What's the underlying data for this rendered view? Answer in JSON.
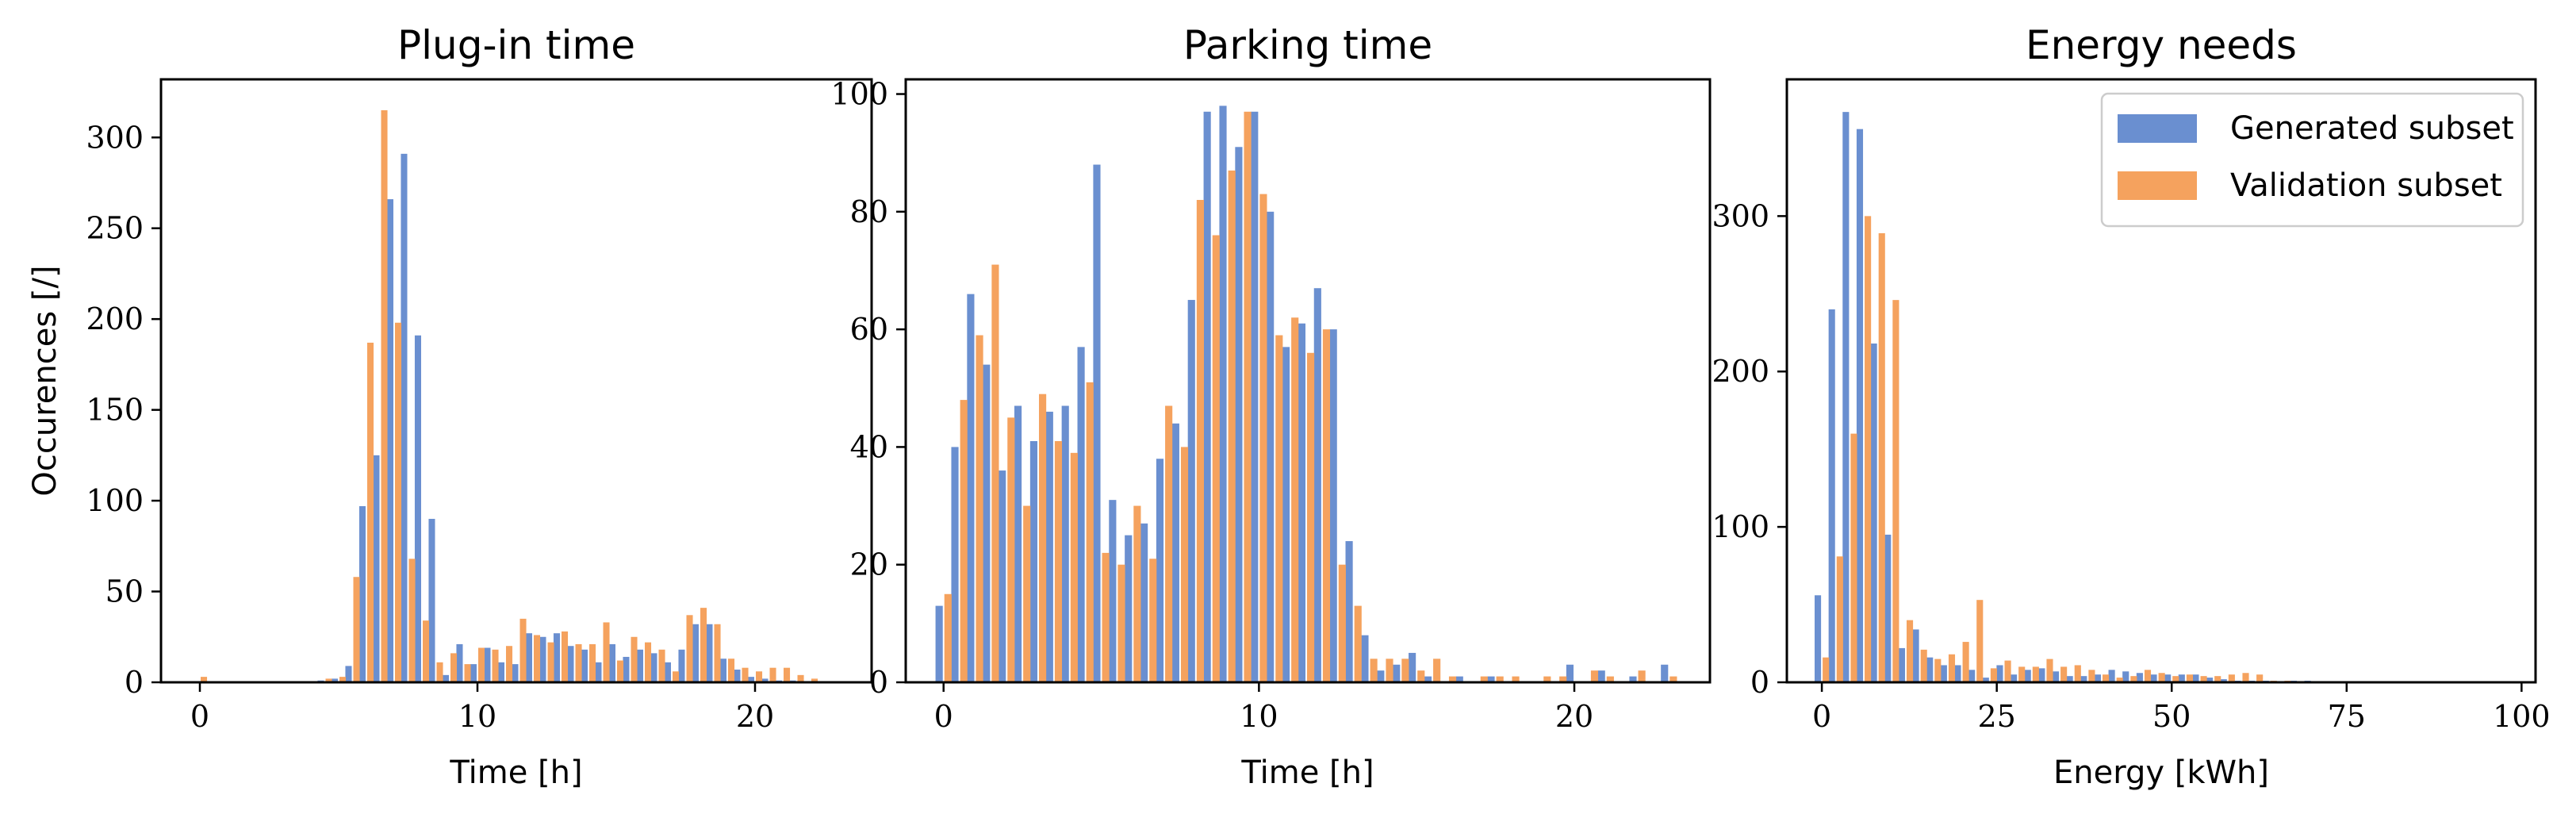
{
  "colors": {
    "generated": "#6a8fd0",
    "validation": "#f5a25e"
  },
  "chart_data": [
    {
      "type": "bar",
      "title": "Plug-in time",
      "xlabel": "Time [h]",
      "ylabel": "Occurences [/]",
      "xlim": [
        -1.4,
        24.2
      ],
      "ylim": [
        0,
        332
      ],
      "xticks": [
        0,
        10,
        20
      ],
      "xtick_labels": [
        "0",
        "10",
        "20"
      ],
      "yticks": [
        0,
        50,
        100,
        150,
        200,
        250,
        300
      ],
      "ytick_labels": [
        "0",
        "50",
        "100",
        "150",
        "200",
        "250",
        "300"
      ],
      "bin_width": 0.5,
      "x": [
        0,
        0.5,
        1,
        1.5,
        2,
        2.5,
        3,
        3.5,
        4,
        4.5,
        5,
        5.5,
        6,
        6.5,
        7,
        7.5,
        8,
        8.5,
        9,
        9.5,
        10,
        10.5,
        11,
        11.5,
        12,
        12.5,
        13,
        13.5,
        14,
        14.5,
        15,
        15.5,
        16,
        16.5,
        17,
        17.5,
        18,
        18.5,
        19,
        19.5,
        20,
        20.5,
        21,
        21.5,
        22,
        22.5,
        23
      ],
      "series": [
        {
          "name": "Generated subset",
          "values": [
            0,
            0,
            0,
            0,
            0,
            0,
            0,
            0,
            0,
            1,
            2,
            9,
            97,
            125,
            266,
            291,
            191,
            90,
            4,
            21,
            10,
            19,
            11,
            10,
            27,
            25,
            27,
            20,
            18,
            11,
            21,
            14,
            18,
            16,
            11,
            18,
            32,
            32,
            13,
            7,
            3,
            2,
            1,
            1,
            0,
            0,
            0
          ]
        },
        {
          "name": "Validation subset",
          "values": [
            3,
            0,
            0,
            0,
            0,
            0,
            0,
            0,
            0,
            2,
            3,
            58,
            187,
            315,
            198,
            68,
            34,
            11,
            16,
            10,
            19,
            18,
            20,
            35,
            26,
            22,
            28,
            21,
            21,
            33,
            12,
            25,
            22,
            18,
            6,
            37,
            41,
            32,
            13,
            8,
            6,
            8,
            8,
            4,
            2,
            0,
            0
          ]
        }
      ]
    },
    {
      "type": "bar",
      "title": "Parking time",
      "xlabel": "Time [h]",
      "ylabel": "",
      "xlim": [
        -1.2,
        24.3
      ],
      "ylim": [
        0,
        102.5
      ],
      "xticks": [
        0,
        10,
        20
      ],
      "xtick_labels": [
        "0",
        "10",
        "20"
      ],
      "yticks": [
        0,
        20,
        40,
        60,
        80,
        100
      ],
      "ytick_labels": [
        "0",
        "20",
        "40",
        "60",
        "80",
        "100"
      ],
      "bin_width": 0.5,
      "x": [
        0,
        0.5,
        1,
        1.5,
        2,
        2.5,
        3,
        3.5,
        4,
        4.5,
        5,
        5.5,
        6,
        6.5,
        7,
        7.5,
        8,
        8.5,
        9,
        9.5,
        10,
        10.5,
        11,
        11.5,
        12,
        12.5,
        13,
        13.5,
        14,
        14.5,
        15,
        15.5,
        16,
        16.5,
        17,
        17.5,
        18,
        18.5,
        19,
        19.5,
        20,
        20.5,
        21,
        21.5,
        22,
        22.5,
        23
      ],
      "series": [
        {
          "name": "Generated subset",
          "values": [
            13,
            40,
            66,
            54,
            36,
            47,
            41,
            46,
            47,
            57,
            88,
            31,
            25,
            27,
            38,
            44,
            65,
            97,
            98,
            91,
            97,
            80,
            57,
            61,
            67,
            60,
            24,
            8,
            2,
            3,
            5,
            1,
            0,
            1,
            0,
            1,
            0,
            0,
            0,
            0,
            3,
            0,
            2,
            0,
            1,
            0,
            3
          ]
        },
        {
          "name": "Validation subset",
          "values": [
            15,
            48,
            59,
            71,
            45,
            30,
            49,
            41,
            39,
            51,
            22,
            20,
            30,
            21,
            47,
            40,
            82,
            76,
            87,
            97,
            83,
            59,
            62,
            56,
            60,
            20,
            13,
            4,
            4,
            4,
            2,
            4,
            1,
            0,
            1,
            1,
            1,
            0,
            1,
            1,
            0,
            2,
            1,
            0,
            2,
            0,
            1
          ]
        }
      ]
    },
    {
      "type": "bar",
      "title": "Energy needs",
      "xlabel": "Energy [kWh]",
      "ylabel": "",
      "xlim": [
        -5,
        102
      ],
      "ylim": [
        0,
        388
      ],
      "xticks": [
        0,
        25,
        50,
        75,
        100
      ],
      "xtick_labels": [
        "0",
        "25",
        "50",
        "75",
        "100"
      ],
      "yticks": [
        0,
        100,
        200,
        300
      ],
      "ytick_labels": [
        "0",
        "100",
        "200",
        "300"
      ],
      "bin_width": 2,
      "legend": {
        "position": "top-right",
        "entries": [
          "Generated subset",
          "Validation subset"
        ]
      },
      "x": [
        0,
        2,
        4,
        6,
        8,
        10,
        12,
        14,
        16,
        18,
        20,
        22,
        24,
        26,
        28,
        30,
        32,
        34,
        36,
        38,
        40,
        42,
        44,
        46,
        48,
        50,
        52,
        54,
        56,
        58,
        60,
        62,
        64,
        66,
        68,
        70
      ],
      "series": [
        {
          "name": "Generated subset",
          "values": [
            56,
            240,
            367,
            356,
            218,
            95,
            22,
            34,
            16,
            11,
            11,
            8,
            3,
            11,
            5,
            8,
            9,
            7,
            4,
            4,
            5,
            8,
            7,
            6,
            5,
            5,
            5,
            5,
            3,
            2,
            1,
            1,
            1,
            0,
            1,
            1
          ]
        },
        {
          "name": "Validation subset",
          "values": [
            16,
            81,
            160,
            300,
            289,
            246,
            40,
            21,
            15,
            18,
            26,
            53,
            9,
            14,
            10,
            10,
            15,
            10,
            11,
            8,
            5,
            3,
            4,
            8,
            6,
            4,
            5,
            4,
            4,
            5,
            6,
            5,
            1,
            1,
            0,
            0
          ]
        }
      ]
    }
  ]
}
